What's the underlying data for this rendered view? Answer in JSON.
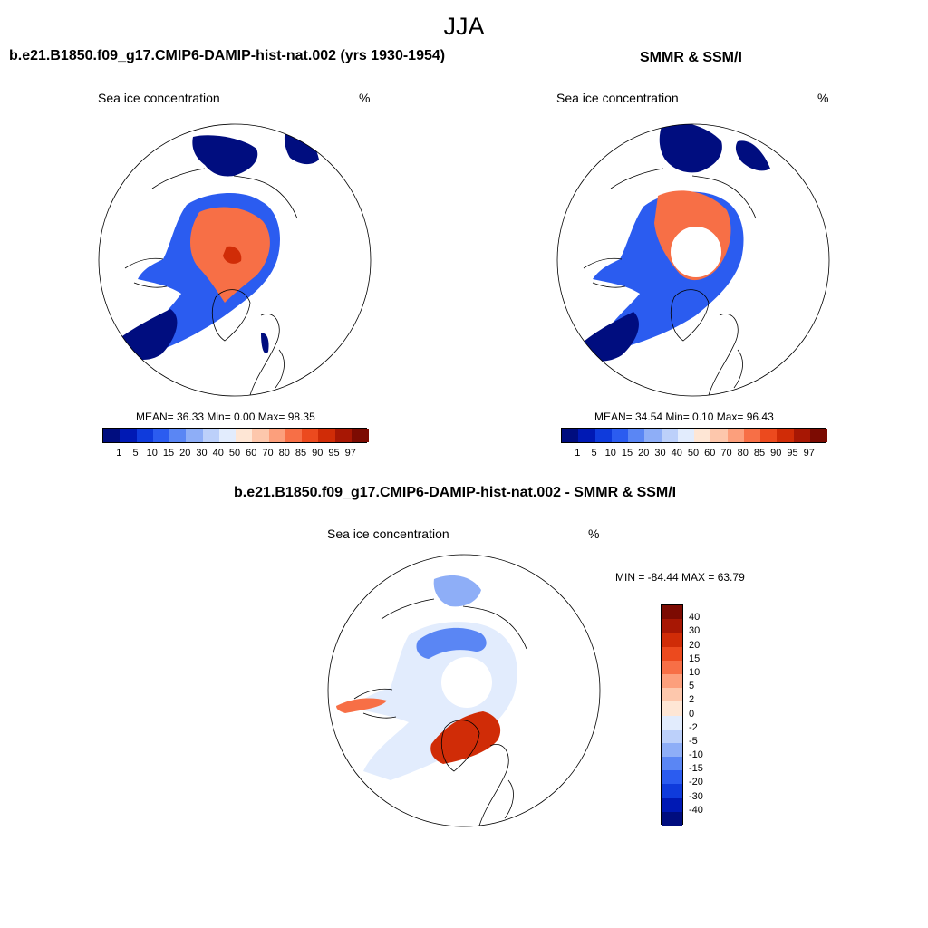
{
  "figure": {
    "title": "JJA"
  },
  "colors": {
    "ocean": "#ffffff",
    "coast": "#000000"
  },
  "chart_data": [
    {
      "type": "heatmap",
      "title": "b.e21.B1850.f09_g17.CMIP6-DAMIP-hist-nat.002 (yrs 1930-1954)",
      "variable_label": "Sea ice concentration",
      "units": "%",
      "stats_text": "MEAN=  36.33  Min=   0.00  Max=  98.35",
      "stats": {
        "mean": 36.33,
        "min": 0.0,
        "max": 98.35
      },
      "projection": "north polar stereographic",
      "pole_hole": false,
      "colorbar": {
        "orientation": "horizontal",
        "levels": [
          "1",
          "5",
          "10",
          "15",
          "20",
          "30",
          "40",
          "50",
          "60",
          "70",
          "80",
          "85",
          "90",
          "95",
          "97"
        ],
        "colors": [
          "#000d7f",
          "#0019b4",
          "#0f3bdc",
          "#2b5cf0",
          "#5a86f4",
          "#8eaef7",
          "#bcd0fa",
          "#e2ecfd",
          "#fee6d5",
          "#fdc7ac",
          "#fc9f7c",
          "#f76f46",
          "#ec4a1e",
          "#d02c07",
          "#a71704",
          "#7c0b02"
        ]
      }
    },
    {
      "type": "heatmap",
      "title": "SMMR & SSM/I",
      "variable_label": "Sea ice concentration",
      "units": "%",
      "stats_text": "MEAN=  34.54  Min=   0.10  Max=  96.43",
      "stats": {
        "mean": 34.54,
        "min": 0.1,
        "max": 96.43
      },
      "projection": "north polar stereographic",
      "pole_hole": true,
      "colorbar": {
        "orientation": "horizontal",
        "levels": [
          "1",
          "5",
          "10",
          "15",
          "20",
          "30",
          "40",
          "50",
          "60",
          "70",
          "80",
          "85",
          "90",
          "95",
          "97"
        ],
        "colors": [
          "#000d7f",
          "#0019b4",
          "#0f3bdc",
          "#2b5cf0",
          "#5a86f4",
          "#8eaef7",
          "#bcd0fa",
          "#e2ecfd",
          "#fee6d5",
          "#fdc7ac",
          "#fc9f7c",
          "#f76f46",
          "#ec4a1e",
          "#d02c07",
          "#a71704",
          "#7c0b02"
        ]
      }
    },
    {
      "type": "heatmap",
      "title": "b.e21.B1850.f09_g17.CMIP6-DAMIP-hist-nat.002 - SMMR & SSM/I",
      "variable_label": "Sea ice concentration",
      "units": "%",
      "stats_text": "MIN = -84.44 MAX =  63.79",
      "stats": {
        "min": -84.44,
        "max": 63.79
      },
      "projection": "north polar stereographic",
      "pole_hole": true,
      "colorbar": {
        "orientation": "vertical",
        "levels": [
          "40",
          "30",
          "20",
          "15",
          "10",
          "5",
          "2",
          "0",
          "-2",
          "-5",
          "-10",
          "-15",
          "-20",
          "-30",
          "-40"
        ],
        "colors": [
          "#7c0b02",
          "#a71704",
          "#d02c07",
          "#ec4a1e",
          "#f76f46",
          "#fc9f7c",
          "#fdc7ac",
          "#fee6d5",
          "#e2ecfd",
          "#bcd0fa",
          "#8eaef7",
          "#5a86f4",
          "#2b5cf0",
          "#0f3bdc",
          "#0019b4",
          "#000d7f"
        ]
      }
    }
  ]
}
